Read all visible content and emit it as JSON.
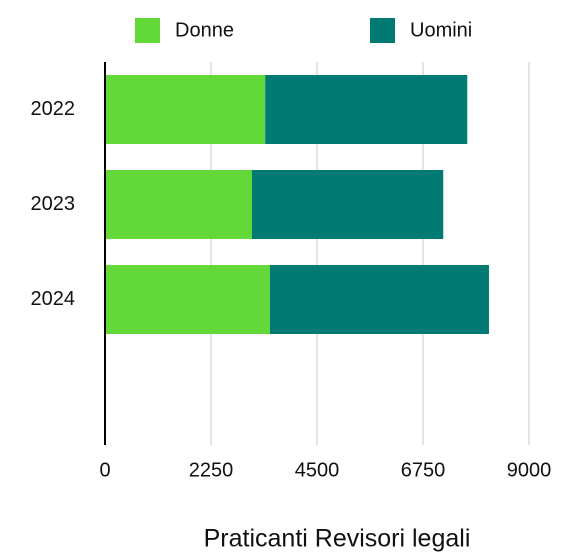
{
  "chart_data": {
    "type": "bar",
    "orientation": "horizontal",
    "stacked": true,
    "xlabel": "Praticanti Revisori legali",
    "categories": [
      "2022",
      "2023",
      "2024"
    ],
    "series": [
      {
        "name": "Donne",
        "color": "#62d938",
        "values": [
          3400,
          3120,
          3500
        ]
      },
      {
        "name": "Uomini",
        "color": "#007a73",
        "values": [
          4290,
          4060,
          4650
        ]
      }
    ],
    "xlim": [
      0,
      9000
    ],
    "xticks": [
      0,
      2250,
      4500,
      6750,
      9000
    ],
    "grid": true,
    "legend": "top"
  }
}
